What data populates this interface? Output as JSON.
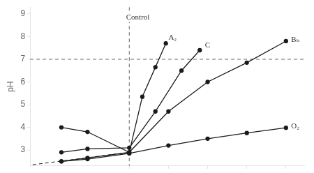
{
  "chart_data": {
    "type": "line",
    "ylabel": "pH",
    "xlim": [
      0,
      10.5
    ],
    "xticks": [
      3.8,
      5.3,
      6.8,
      8.3,
      9.8
    ],
    "ylim": [
      2.3,
      9.3
    ],
    "yticks": [
      3,
      4,
      5,
      6,
      7,
      8,
      9
    ],
    "grid": false,
    "tick_labels": "y",
    "series": [
      {
        "x": [
          0.1,
          3.8
        ],
        "values": [
          2.35,
          2.9
        ],
        "color": "#1a1a1a",
        "line_style": "dashed",
        "marker": "none"
      },
      {
        "x": [
          1.2,
          2.2,
          3.8,
          5.3,
          6.8,
          8.3,
          9.8
        ],
        "values": [
          2.5,
          2.65,
          2.9,
          4.7,
          6.0,
          6.85,
          7.8
        ],
        "color": "#1a1a1a",
        "line_style": "solid",
        "marker": "circle"
      },
      {
        "x": [
          1.2,
          2.2,
          3.8,
          4.8,
          5.8,
          6.5
        ],
        "values": [
          2.9,
          3.05,
          3.1,
          4.7,
          6.5,
          7.4
        ],
        "color": "#1a1a1a",
        "line_style": "solid",
        "marker": "circle"
      },
      {
        "x": [
          1.2,
          2.2,
          3.8,
          4.3,
          4.8,
          5.2
        ],
        "values": [
          4.0,
          3.8,
          2.9,
          5.35,
          6.65,
          7.7
        ],
        "color": "#1a1a1a",
        "line_style": "solid",
        "marker": "circle"
      },
      {
        "x": [
          1.2,
          2.2,
          3.8,
          5.3,
          6.8,
          8.3,
          9.8
        ],
        "values": [
          2.5,
          2.6,
          2.85,
          3.2,
          3.5,
          3.75,
          3.98
        ],
        "color": "#1a1a1a",
        "line_style": "solid",
        "marker": "circle"
      }
    ],
    "hline": 7.0,
    "vline": 3.8,
    "annotations": [
      {
        "text": "Bₕ",
        "x": 10.0,
        "y": 7.85
      },
      {
        "text": "C",
        "x": 6.7,
        "y": 7.6
      },
      {
        "text": "A₂",
        "x": 5.3,
        "y": 7.95
      },
      {
        "text": "O₂",
        "x": 10.0,
        "y": 4.05
      },
      {
        "text": "Control",
        "x": 3.68,
        "y": 8.85
      }
    ]
  }
}
